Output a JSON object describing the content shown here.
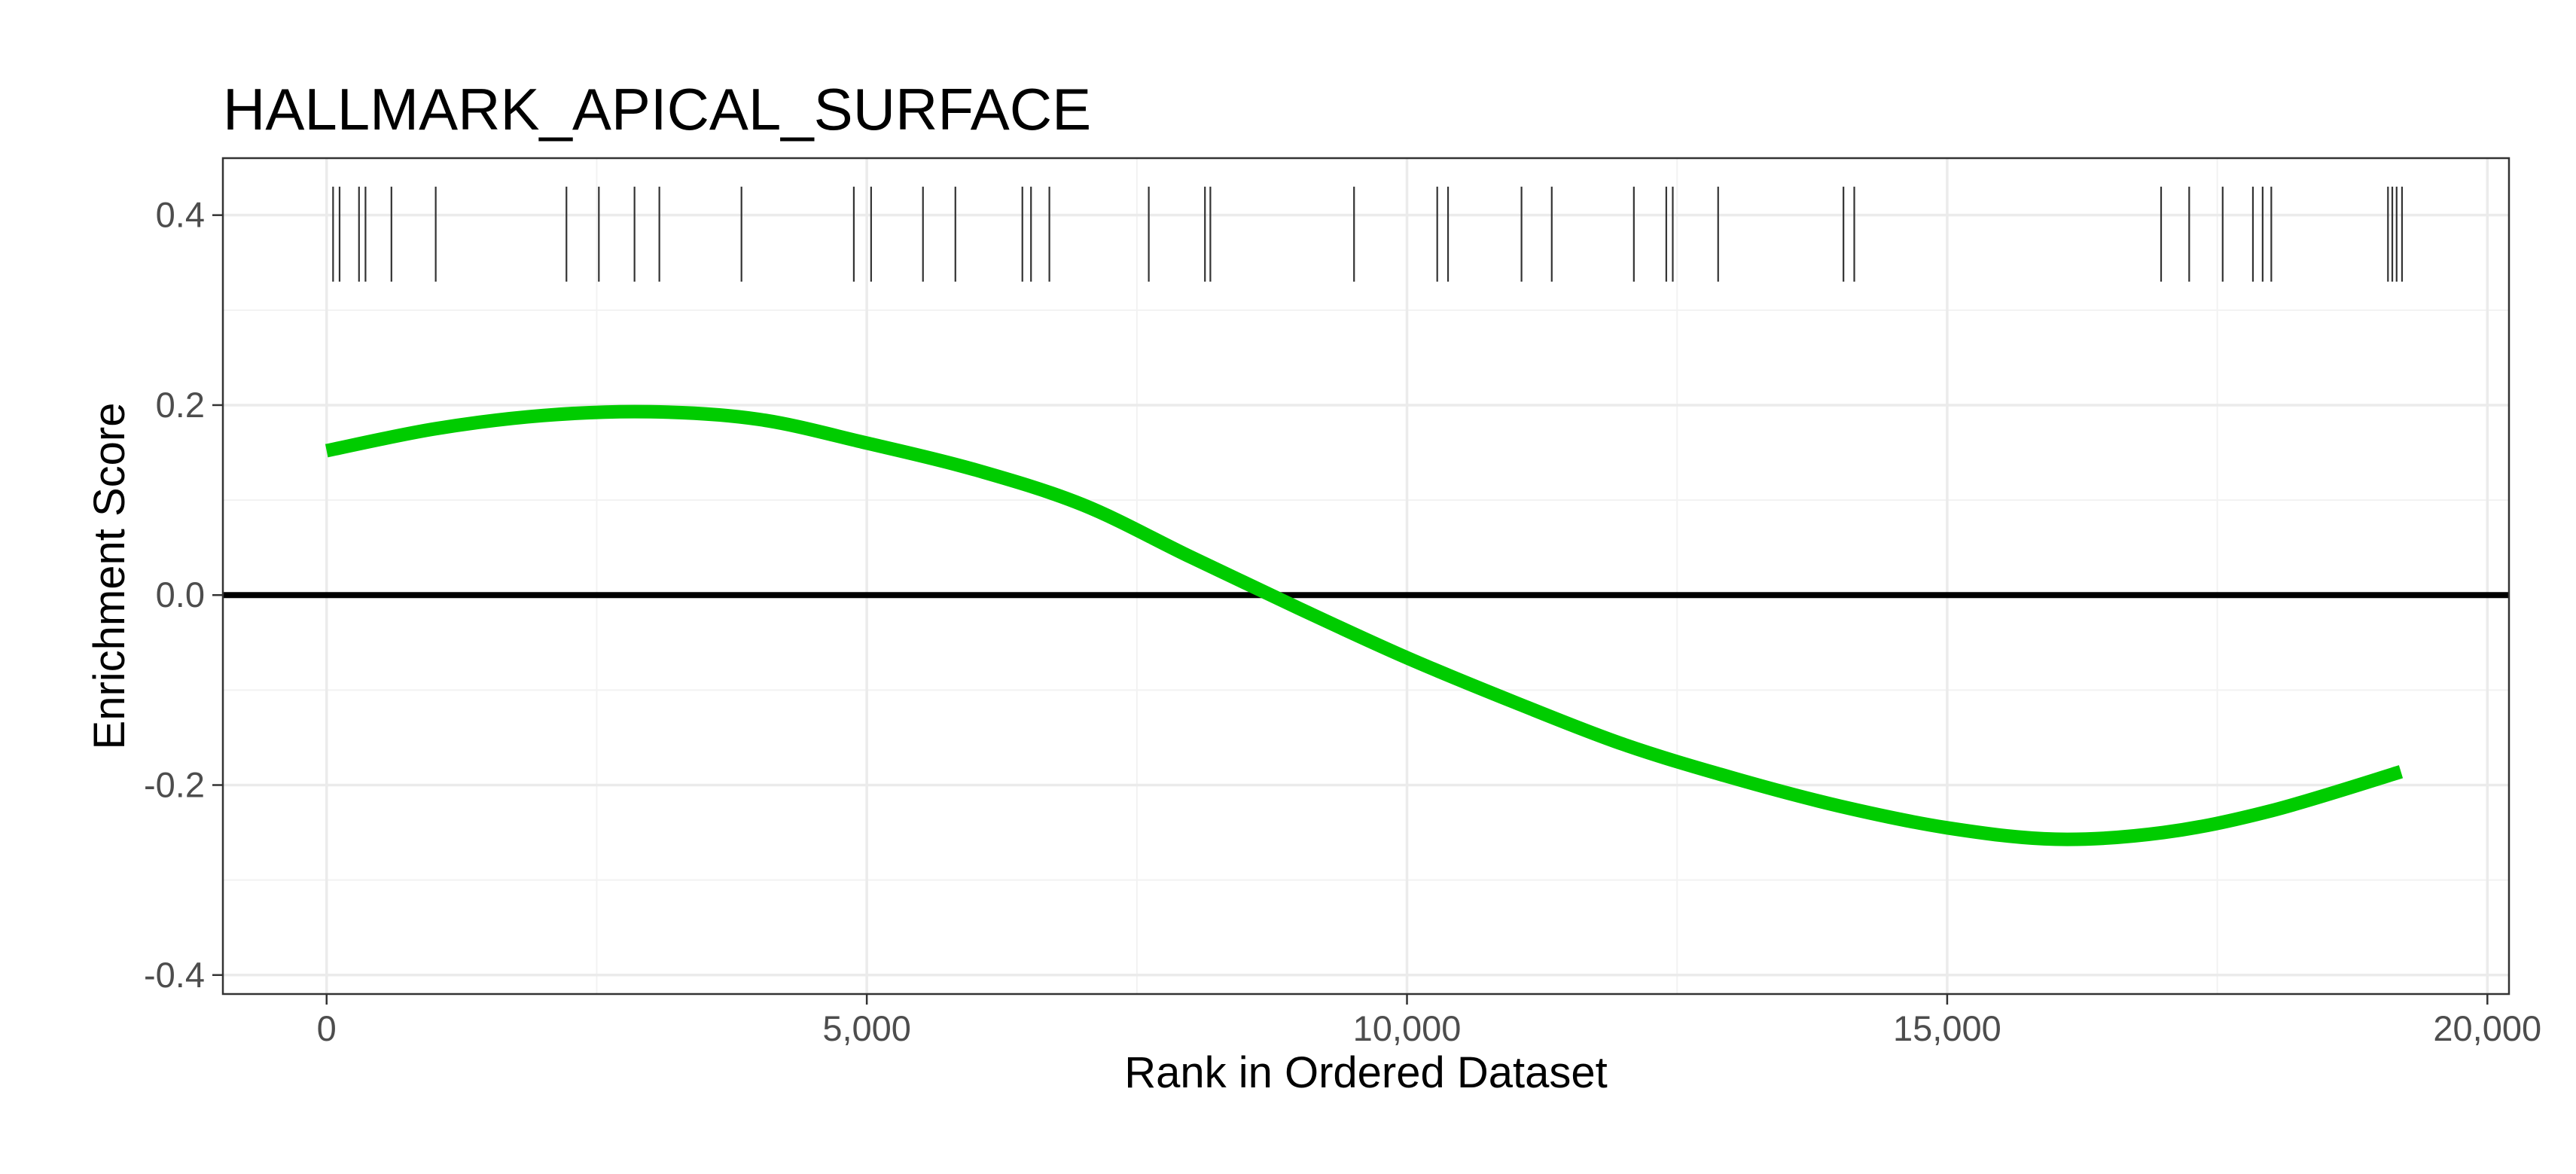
{
  "chart_data": {
    "type": "line",
    "title": "HALLMARK_APICAL_SURFACE",
    "xlabel": "Rank in Ordered Dataset",
    "ylabel": "Enrichment Score",
    "xlim": [
      -960,
      20200
    ],
    "ylim": [
      -0.42,
      0.46
    ],
    "x_ticks": [
      0,
      5000,
      10000,
      15000,
      20000
    ],
    "x_tick_labels": [
      "0",
      "5,000",
      "10,000",
      "15,000",
      "20,000"
    ],
    "y_ticks": [
      -0.4,
      -0.2,
      0.0,
      0.2,
      0.4
    ],
    "y_tick_labels": [
      "-0.4",
      "-0.2",
      "0.0",
      "0.2",
      "0.4"
    ],
    "grid": true,
    "legend": "none",
    "series": [
      {
        "color": "#00cc00",
        "x": [
          0,
          1000,
          2000,
          3000,
          4000,
          5000,
          6000,
          7000,
          8000,
          9000,
          10000,
          11000,
          12000,
          13000,
          14000,
          15000,
          16000,
          17000,
          18000,
          19200
        ],
        "values": [
          0.152,
          0.175,
          0.189,
          0.193,
          0.185,
          0.16,
          0.132,
          0.095,
          0.04,
          -0.014,
          -0.066,
          -0.113,
          -0.157,
          -0.192,
          -0.222,
          -0.245,
          -0.257,
          -0.25,
          -0.227,
          -0.186
        ]
      }
    ],
    "reference_line": {
      "y": 0.0,
      "color": "#000000"
    },
    "gene_hits": {
      "color": "#333333",
      "y_range": [
        0.33,
        0.43
      ],
      "x": [
        60,
        120,
        300,
        360,
        600,
        1010,
        2220,
        2520,
        2850,
        3080,
        3840,
        4880,
        5040,
        5520,
        5820,
        6440,
        6520,
        6690,
        7610,
        8130,
        8180,
        9510,
        10280,
        10380,
        11060,
        11340,
        12100,
        12400,
        12460,
        12880,
        14040,
        14140,
        16980,
        17240,
        17550,
        17830,
        17920,
        18000,
        19080,
        19120,
        19160,
        19210
      ]
    }
  }
}
